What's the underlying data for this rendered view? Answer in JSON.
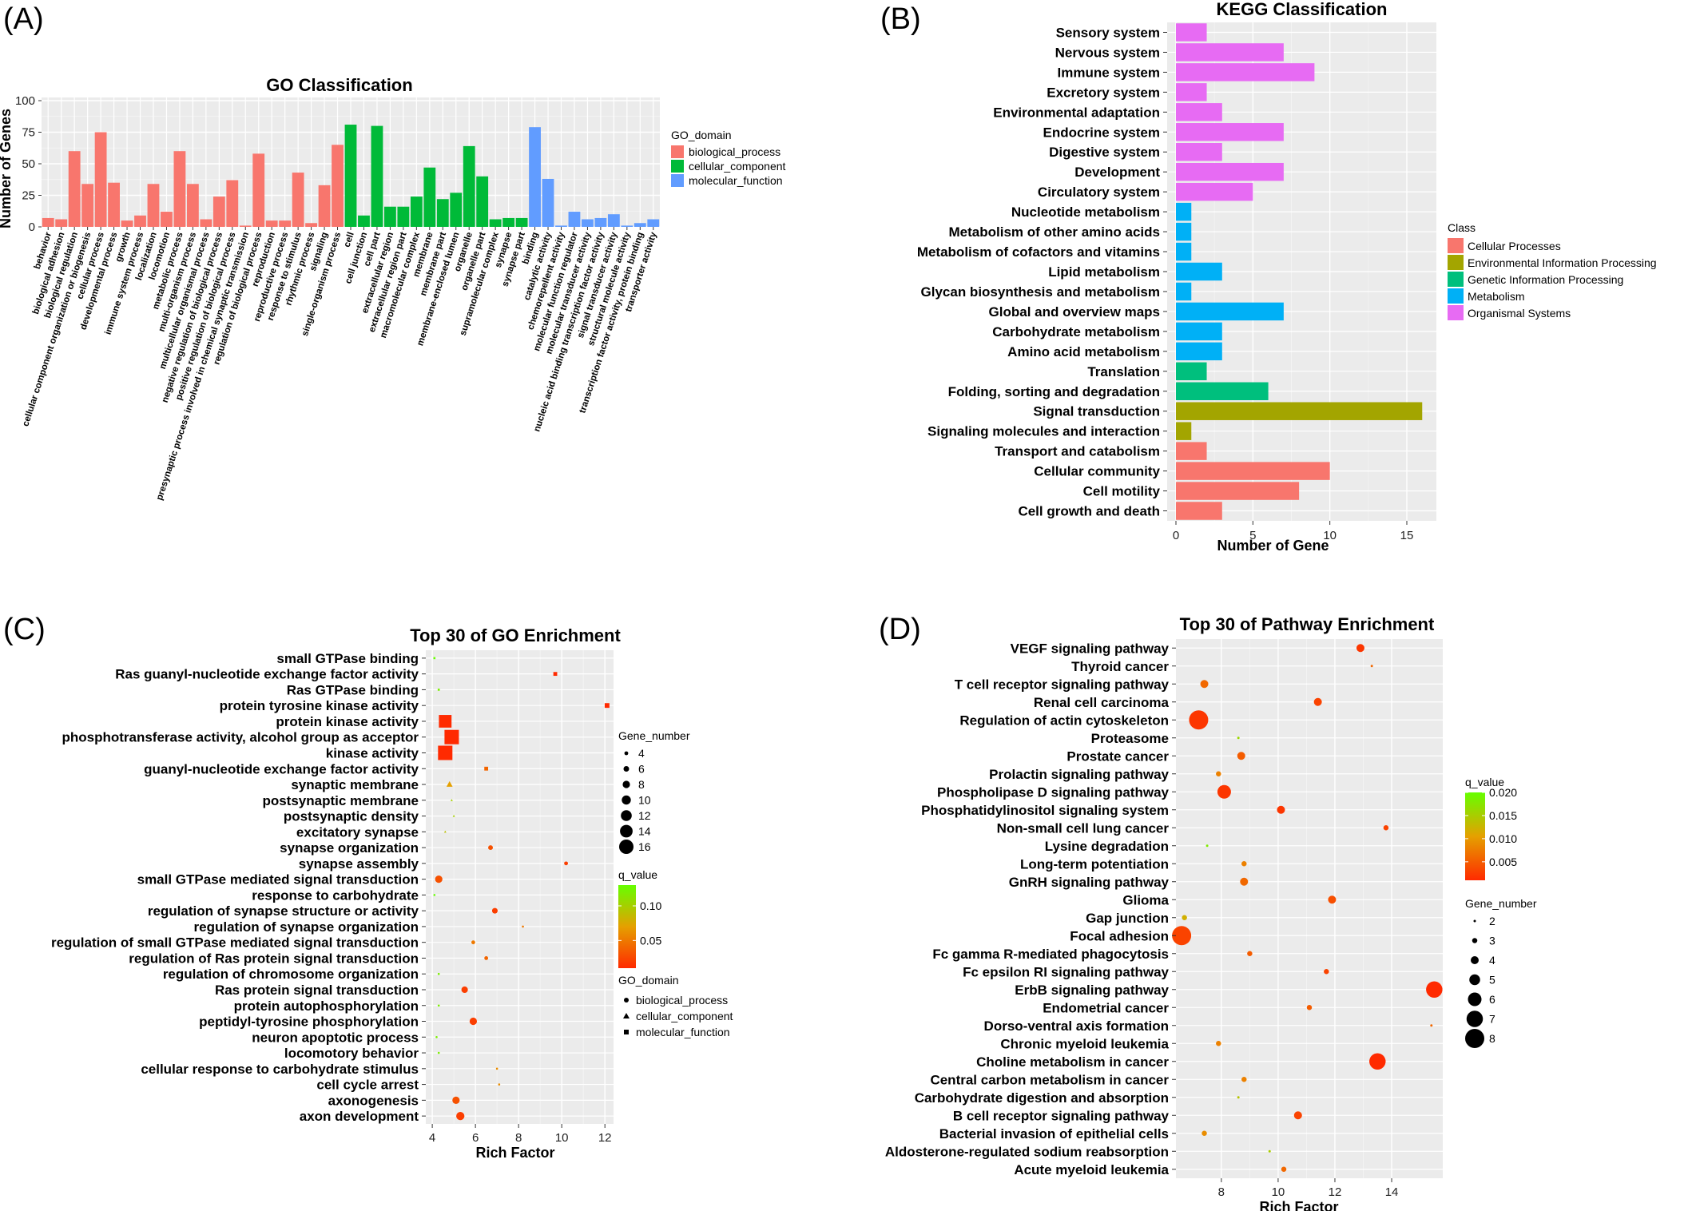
{
  "panels": {
    "a": "(A)",
    "b": "(B)",
    "c": "(C)",
    "d": "(D)"
  },
  "colors": {
    "biological_process": "#F8766D",
    "cellular_component": "#00BA38",
    "molecular_function": "#619CFF",
    "cellular_processes": "#F8766D",
    "environmental_information_processing": "#A3A500",
    "genetic_information_processing": "#00BF7D",
    "metabolism": "#00B0F6",
    "organismal_systems": "#E76BF3",
    "panel_bg": "#EBEBEB",
    "grid": "#FFFFFF"
  },
  "chart_data": [
    {
      "type": "bar",
      "title": "GO Classification",
      "xlabel": "",
      "ylabel": "Number of Genes",
      "ylim": [
        0,
        100
      ],
      "yticks": [
        0,
        25,
        50,
        75,
        100
      ],
      "legend": {
        "title": "GO_domain",
        "position": "right",
        "entries": [
          "biological_process",
          "cellular_component",
          "molecular_function"
        ]
      },
      "categories": [
        "behavior",
        "biological adhesion",
        "biological regulation",
        "cellular component organization or biogenesis",
        "cellular process",
        "developmental process",
        "growth",
        "immune system process",
        "localization",
        "locomotion",
        "metabolic process",
        "multi-organism process",
        "multicellular organismal process",
        "negative regulation of biological process",
        "positive regulation of biological process",
        "presynaptic process involved in chemical synaptic transmission",
        "regulation of biological process",
        "reproduction",
        "reproductive process",
        "response to stimulus",
        "rhythmic process",
        "signaling",
        "single-organism process",
        "cell",
        "cell junction",
        "cell part",
        "extracellular region",
        "extracellular region part",
        "macromolecular complex",
        "membrane",
        "membrane part",
        "membrane-enclosed lumen",
        "organelle",
        "organelle part",
        "supramolecular complex",
        "synapse",
        "synapse part",
        "binding",
        "catalytic activity",
        "chemorepellent activity",
        "molecular function regulator",
        "molecular transducer activity",
        "nucleic acid binding transcription factor activity",
        "signal transducer activity",
        "structural molecule activity",
        "transcription factor activity, protein binding",
        "transporter activity"
      ],
      "values": [
        7,
        6,
        60,
        34,
        75,
        35,
        5,
        9,
        34,
        12,
        60,
        34,
        6,
        24,
        37,
        1,
        58,
        5,
        5,
        43,
        3,
        33,
        65,
        81,
        9,
        80,
        16,
        16,
        24,
        47,
        22,
        27,
        64,
        40,
        6,
        7,
        7,
        79,
        38,
        1,
        12,
        6,
        7,
        10,
        1,
        3,
        6
      ],
      "domains": [
        "biological_process",
        "biological_process",
        "biological_process",
        "biological_process",
        "biological_process",
        "biological_process",
        "biological_process",
        "biological_process",
        "biological_process",
        "biological_process",
        "biological_process",
        "biological_process",
        "biological_process",
        "biological_process",
        "biological_process",
        "biological_process",
        "biological_process",
        "biological_process",
        "biological_process",
        "biological_process",
        "biological_process",
        "biological_process",
        "biological_process",
        "cellular_component",
        "cellular_component",
        "cellular_component",
        "cellular_component",
        "cellular_component",
        "cellular_component",
        "cellular_component",
        "cellular_component",
        "cellular_component",
        "cellular_component",
        "cellular_component",
        "cellular_component",
        "cellular_component",
        "cellular_component",
        "molecular_function",
        "molecular_function",
        "molecular_function",
        "molecular_function",
        "molecular_function",
        "molecular_function",
        "molecular_function",
        "molecular_function",
        "molecular_function",
        "molecular_function"
      ]
    },
    {
      "type": "bar",
      "orientation": "horizontal",
      "title": "KEGG Classification",
      "xlabel": "Number of Gene",
      "ylabel": "",
      "xlim": [
        0,
        17
      ],
      "xticks": [
        0,
        5,
        10,
        15
      ],
      "legend": {
        "title": "Class",
        "position": "right",
        "entries": [
          "Cellular Processes",
          "Environmental Information Processing",
          "Genetic Information Processing",
          "Metabolism",
          "Organismal Systems"
        ]
      },
      "categories": [
        "Sensory system",
        "Nervous system",
        "Immune system",
        "Excretory system",
        "Environmental adaptation",
        "Endocrine system",
        "Digestive system",
        "Development",
        "Circulatory system",
        "Nucleotide metabolism",
        "Metabolism of other amino acids",
        "Metabolism of cofactors and vitamins",
        "Lipid metabolism",
        "Glycan biosynthesis and metabolism",
        "Global and overview maps",
        "Carbohydrate metabolism",
        "Amino acid metabolism",
        "Translation",
        "Folding, sorting and degradation",
        "Signal transduction",
        "Signaling molecules and interaction",
        "Transport and catabolism",
        "Cellular community",
        "Cell motility",
        "Cell growth and death"
      ],
      "values": [
        2,
        7,
        9,
        2,
        3,
        7,
        3,
        7,
        5,
        1,
        1,
        1,
        3,
        1,
        7,
        3,
        3,
        2,
        6,
        16,
        1,
        2,
        10,
        8,
        3
      ],
      "classes": [
        "Organismal Systems",
        "Organismal Systems",
        "Organismal Systems",
        "Organismal Systems",
        "Organismal Systems",
        "Organismal Systems",
        "Organismal Systems",
        "Organismal Systems",
        "Organismal Systems",
        "Metabolism",
        "Metabolism",
        "Metabolism",
        "Metabolism",
        "Metabolism",
        "Metabolism",
        "Metabolism",
        "Metabolism",
        "Genetic Information Processing",
        "Genetic Information Processing",
        "Environmental Information Processing",
        "Environmental Information Processing",
        "Cellular Processes",
        "Cellular Processes",
        "Cellular Processes",
        "Cellular Processes"
      ]
    },
    {
      "type": "scatter",
      "title": "Top 30 of GO Enrichment",
      "xlabel": "Rich Factor",
      "ylabel": "",
      "xlim": [
        3.7,
        12.4
      ],
      "xticks": [
        4,
        6,
        8,
        10,
        12
      ],
      "color_scale": {
        "title": "q_value",
        "range": [
          0.01,
          0.13
        ],
        "ticks": [
          0.05,
          0.1
        ],
        "low": "#FF2A00",
        "high": "#66FF00"
      },
      "size_legend": {
        "title": "Gene_number",
        "values": [
          4,
          6,
          8,
          10,
          12,
          14,
          16
        ]
      },
      "shape_legend": {
        "title": "GO_domain",
        "entries": [
          "biological_process",
          "cellular_component",
          "molecular_function"
        ]
      },
      "points": [
        {
          "term": "small GTPase binding",
          "x": 4.1,
          "q": 0.13,
          "n": 2,
          "domain": "molecular_function"
        },
        {
          "term": "Ras guanyl-nucleotide exchange factor activity",
          "x": 9.7,
          "q": 0.01,
          "n": 4,
          "domain": "molecular_function"
        },
        {
          "term": "Ras GTPase binding",
          "x": 4.3,
          "q": 0.12,
          "n": 2,
          "domain": "molecular_function"
        },
        {
          "term": "protein tyrosine kinase activity",
          "x": 12.1,
          "q": 0.01,
          "n": 5,
          "domain": "molecular_function"
        },
        {
          "term": "protein kinase activity",
          "x": 4.6,
          "q": 0.01,
          "n": 14,
          "domain": "molecular_function"
        },
        {
          "term": "phosphotransferase activity, alcohol group as acceptor",
          "x": 4.9,
          "q": 0.01,
          "n": 16,
          "domain": "molecular_function"
        },
        {
          "term": "kinase activity",
          "x": 4.6,
          "q": 0.01,
          "n": 16,
          "domain": "molecular_function"
        },
        {
          "term": "guanyl-nucleotide exchange factor activity",
          "x": 6.5,
          "q": 0.04,
          "n": 4,
          "domain": "molecular_function"
        },
        {
          "term": "synaptic membrane",
          "x": 4.8,
          "q": 0.07,
          "n": 6,
          "domain": "cellular_component"
        },
        {
          "term": "postsynaptic membrane",
          "x": 4.9,
          "q": 0.1,
          "n": 2,
          "domain": "cellular_component"
        },
        {
          "term": "postsynaptic density",
          "x": 5.0,
          "q": 0.1,
          "n": 2,
          "domain": "cellular_component"
        },
        {
          "term": "excitatory synapse",
          "x": 4.6,
          "q": 0.09,
          "n": 2,
          "domain": "cellular_component"
        },
        {
          "term": "synapse organization",
          "x": 6.7,
          "q": 0.03,
          "n": 5,
          "domain": "biological_process"
        },
        {
          "term": "synapse assembly",
          "x": 10.2,
          "q": 0.02,
          "n": 4,
          "domain": "biological_process"
        },
        {
          "term": "small GTPase mediated signal transduction",
          "x": 4.3,
          "q": 0.03,
          "n": 8,
          "domain": "biological_process"
        },
        {
          "term": "response to carbohydrate",
          "x": 4.1,
          "q": 0.13,
          "n": 2,
          "domain": "biological_process"
        },
        {
          "term": "regulation of synapse structure or activity",
          "x": 6.9,
          "q": 0.02,
          "n": 6,
          "domain": "biological_process"
        },
        {
          "term": "regulation of synapse organization",
          "x": 8.2,
          "q": 0.05,
          "n": 2,
          "domain": "biological_process"
        },
        {
          "term": "regulation of small GTPase mediated signal transduction",
          "x": 5.9,
          "q": 0.05,
          "n": 4,
          "domain": "biological_process"
        },
        {
          "term": "regulation of Ras protein signal transduction",
          "x": 6.5,
          "q": 0.04,
          "n": 4,
          "domain": "biological_process"
        },
        {
          "term": "regulation of chromosome organization",
          "x": 4.3,
          "q": 0.12,
          "n": 2,
          "domain": "biological_process"
        },
        {
          "term": "Ras protein signal transduction",
          "x": 5.5,
          "q": 0.02,
          "n": 7,
          "domain": "biological_process"
        },
        {
          "term": "protein autophosphorylation",
          "x": 4.3,
          "q": 0.12,
          "n": 2,
          "domain": "biological_process"
        },
        {
          "term": "peptidyl-tyrosine phosphorylation",
          "x": 5.9,
          "q": 0.02,
          "n": 8,
          "domain": "biological_process"
        },
        {
          "term": "neuron apoptotic process",
          "x": 4.2,
          "q": 0.12,
          "n": 2,
          "domain": "biological_process"
        },
        {
          "term": "locomotory behavior",
          "x": 4.3,
          "q": 0.12,
          "n": 2,
          "domain": "biological_process"
        },
        {
          "term": "cellular response to carbohydrate stimulus",
          "x": 7.0,
          "q": 0.06,
          "n": 2,
          "domain": "biological_process"
        },
        {
          "term": "cell cycle arrest",
          "x": 7.1,
          "q": 0.06,
          "n": 2,
          "domain": "biological_process"
        },
        {
          "term": "axonogenesis",
          "x": 5.1,
          "q": 0.03,
          "n": 8,
          "domain": "biological_process"
        },
        {
          "term": "axon development",
          "x": 5.3,
          "q": 0.02,
          "n": 9,
          "domain": "biological_process"
        }
      ]
    },
    {
      "type": "scatter",
      "title": "Top 30 of Pathway Enrichment",
      "xlabel": "Rich Factor",
      "ylabel": "",
      "xlim": [
        6.4,
        15.8
      ],
      "xticks": [
        8,
        10,
        12,
        14
      ],
      "color_scale": {
        "title": "q_value",
        "range": [
          0.001,
          0.02
        ],
        "ticks": [
          0.005,
          0.01,
          0.015,
          0.02
        ],
        "low": "#FF2A00",
        "high": "#66FF00"
      },
      "size_legend": {
        "title": "Gene_number",
        "values": [
          2,
          3,
          4,
          5,
          6,
          7,
          8
        ]
      },
      "points": [
        {
          "term": "VEGF signaling pathway",
          "x": 12.9,
          "q": 0.002,
          "n": 4
        },
        {
          "term": "Thyroid cancer",
          "x": 13.3,
          "q": 0.006,
          "n": 2
        },
        {
          "term": "T cell receptor signaling pathway",
          "x": 7.4,
          "q": 0.006,
          "n": 4
        },
        {
          "term": "Renal cell carcinoma",
          "x": 11.4,
          "q": 0.003,
          "n": 4
        },
        {
          "term": "Regulation of actin cytoskeleton",
          "x": 7.2,
          "q": 0.002,
          "n": 8
        },
        {
          "term": "Proteasome",
          "x": 8.6,
          "q": 0.016,
          "n": 2
        },
        {
          "term": "Prostate cancer",
          "x": 8.7,
          "q": 0.005,
          "n": 4
        },
        {
          "term": "Prolactin signaling pathway",
          "x": 7.9,
          "q": 0.008,
          "n": 3
        },
        {
          "term": "Phospholipase D signaling pathway",
          "x": 8.1,
          "q": 0.002,
          "n": 6
        },
        {
          "term": "Phosphatidylinositol signaling system",
          "x": 10.1,
          "q": 0.002,
          "n": 4
        },
        {
          "term": "Non-small cell lung cancer",
          "x": 13.8,
          "q": 0.003,
          "n": 3
        },
        {
          "term": "Lysine degradation",
          "x": 7.5,
          "q": 0.018,
          "n": 2
        },
        {
          "term": "Long-term potentiation",
          "x": 8.8,
          "q": 0.008,
          "n": 3
        },
        {
          "term": "GnRH signaling pathway",
          "x": 8.8,
          "q": 0.006,
          "n": 4
        },
        {
          "term": "Glioma",
          "x": 11.9,
          "q": 0.004,
          "n": 4
        },
        {
          "term": "Gap junction",
          "x": 6.7,
          "q": 0.012,
          "n": 3
        },
        {
          "term": "Focal adhesion",
          "x": 6.6,
          "q": 0.003,
          "n": 8
        },
        {
          "term": "Fc gamma R-mediated phagocytosis",
          "x": 9.0,
          "q": 0.005,
          "n": 3
        },
        {
          "term": "Fc epsilon RI signaling pathway",
          "x": 11.7,
          "q": 0.003,
          "n": 3
        },
        {
          "term": "ErbB signaling pathway",
          "x": 15.5,
          "q": 0.001,
          "n": 7
        },
        {
          "term": "Endometrial cancer",
          "x": 11.1,
          "q": 0.005,
          "n": 3
        },
        {
          "term": "Dorso-ventral axis formation",
          "x": 15.4,
          "q": 0.006,
          "n": 2
        },
        {
          "term": "Chronic myeloid leukemia",
          "x": 7.9,
          "q": 0.008,
          "n": 3
        },
        {
          "term": "Choline metabolism in cancer",
          "x": 13.5,
          "q": 0.001,
          "n": 7
        },
        {
          "term": "Central carbon metabolism in cancer",
          "x": 8.8,
          "q": 0.008,
          "n": 3
        },
        {
          "term": "Carbohydrate digestion and absorption",
          "x": 8.6,
          "q": 0.014,
          "n": 2
        },
        {
          "term": "B cell receptor signaling pathway",
          "x": 10.7,
          "q": 0.003,
          "n": 4
        },
        {
          "term": "Bacterial invasion of epithelial cells",
          "x": 7.4,
          "q": 0.009,
          "n": 3
        },
        {
          "term": "Aldosterone-regulated sodium reabsorption",
          "x": 9.7,
          "q": 0.015,
          "n": 2
        },
        {
          "term": "Acute myeloid leukemia",
          "x": 10.2,
          "q": 0.006,
          "n": 3
        }
      ]
    }
  ]
}
